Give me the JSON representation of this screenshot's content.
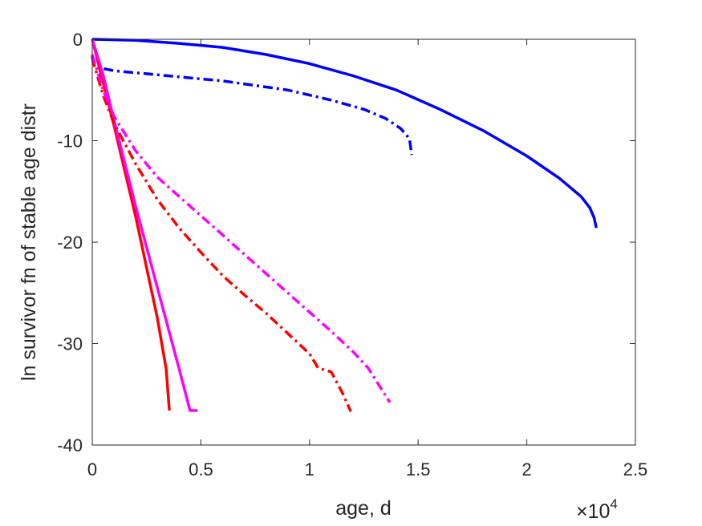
{
  "chart_data": {
    "type": "line",
    "title": "",
    "xlabel": "age, d",
    "ylabel": "ln survivor fn of stable age distr",
    "x_exponent": {
      "base": "×10",
      "power": "4"
    },
    "xlim": [
      0,
      25000
    ],
    "ylim": [
      -40,
      0
    ],
    "x_ticks": [
      0,
      5000,
      10000,
      15000,
      20000,
      25000
    ],
    "x_tick_labels": [
      "0",
      "0.5",
      "1",
      "1.5",
      "2",
      "2.5"
    ],
    "y_ticks": [
      0,
      -10,
      -20,
      -30,
      -40
    ],
    "y_tick_labels": [
      "0",
      "-10",
      "-20",
      "-30",
      "-40"
    ],
    "grid": false,
    "legend": "none",
    "series": [
      {
        "color": "#0000ff",
        "style": "solid",
        "points": [
          [
            0,
            0
          ],
          [
            2000,
            -0.1
          ],
          [
            4000,
            -0.4
          ],
          [
            6000,
            -0.8
          ],
          [
            8000,
            -1.5
          ],
          [
            10000,
            -2.4
          ],
          [
            12000,
            -3.6
          ],
          [
            14000,
            -5.0
          ],
          [
            16000,
            -6.9
          ],
          [
            18000,
            -9.0
          ],
          [
            20000,
            -11.5
          ],
          [
            21500,
            -13.7
          ],
          [
            22500,
            -15.5
          ],
          [
            22900,
            -16.6
          ],
          [
            23100,
            -17.6
          ],
          [
            23200,
            -18.6
          ]
        ]
      },
      {
        "color": "#0000ff",
        "style": "dashdot",
        "points": [
          [
            0,
            -1.6
          ],
          [
            50,
            -2.4
          ],
          [
            300,
            -2.8
          ],
          [
            1000,
            -3.1
          ],
          [
            3000,
            -3.5
          ],
          [
            6000,
            -4.1
          ],
          [
            9000,
            -5.0
          ],
          [
            11000,
            -6.0
          ],
          [
            12500,
            -6.9
          ],
          [
            13500,
            -7.8
          ],
          [
            14200,
            -8.8
          ],
          [
            14600,
            -9.8
          ],
          [
            14700,
            -11.4
          ]
        ]
      },
      {
        "color": "#ff0000",
        "style": "solid",
        "points": [
          [
            0,
            0
          ],
          [
            1000,
            -8.5
          ],
          [
            2000,
            -17.5
          ],
          [
            3000,
            -27.5
          ],
          [
            3400,
            -32.5
          ],
          [
            3550,
            -36.6
          ]
        ]
      },
      {
        "color": "#ff00ff",
        "style": "solid",
        "points": [
          [
            0,
            0
          ],
          [
            500,
            -3.5
          ],
          [
            1000,
            -8
          ],
          [
            2000,
            -16.5
          ],
          [
            3000,
            -24.5
          ],
          [
            4000,
            -32.5
          ],
          [
            4500,
            -36.6
          ],
          [
            4850,
            -36.6
          ]
        ]
      },
      {
        "color": "#ff0000",
        "style": "dashdot",
        "points": [
          [
            0,
            -1.8
          ],
          [
            150,
            -3
          ],
          [
            500,
            -5.5
          ],
          [
            1000,
            -8.3
          ],
          [
            2000,
            -12.3
          ],
          [
            3000,
            -15.8
          ],
          [
            4000,
            -18.6
          ],
          [
            5000,
            -21.0
          ],
          [
            6000,
            -23.3
          ],
          [
            7000,
            -25.2
          ],
          [
            8000,
            -27.0
          ],
          [
            9000,
            -29.0
          ],
          [
            10000,
            -31.0
          ],
          [
            10400,
            -32.4
          ],
          [
            11000,
            -32.8
          ],
          [
            11500,
            -34.8
          ],
          [
            11900,
            -36.7
          ]
        ]
      },
      {
        "color": "#ff00ff",
        "style": "dashdot",
        "points": [
          [
            0,
            -1.5
          ],
          [
            500,
            -5.0
          ],
          [
            1000,
            -7.6
          ],
          [
            2000,
            -11.0
          ],
          [
            3000,
            -13.6
          ],
          [
            4000,
            -15.5
          ],
          [
            5000,
            -17.4
          ],
          [
            6000,
            -19.3
          ],
          [
            7000,
            -21.2
          ],
          [
            8000,
            -23.1
          ],
          [
            9000,
            -25.0
          ],
          [
            10000,
            -26.9
          ],
          [
            11000,
            -28.8
          ],
          [
            12000,
            -30.8
          ],
          [
            12700,
            -32.4
          ],
          [
            13400,
            -34.8
          ],
          [
            13700,
            -35.8
          ]
        ]
      }
    ]
  }
}
